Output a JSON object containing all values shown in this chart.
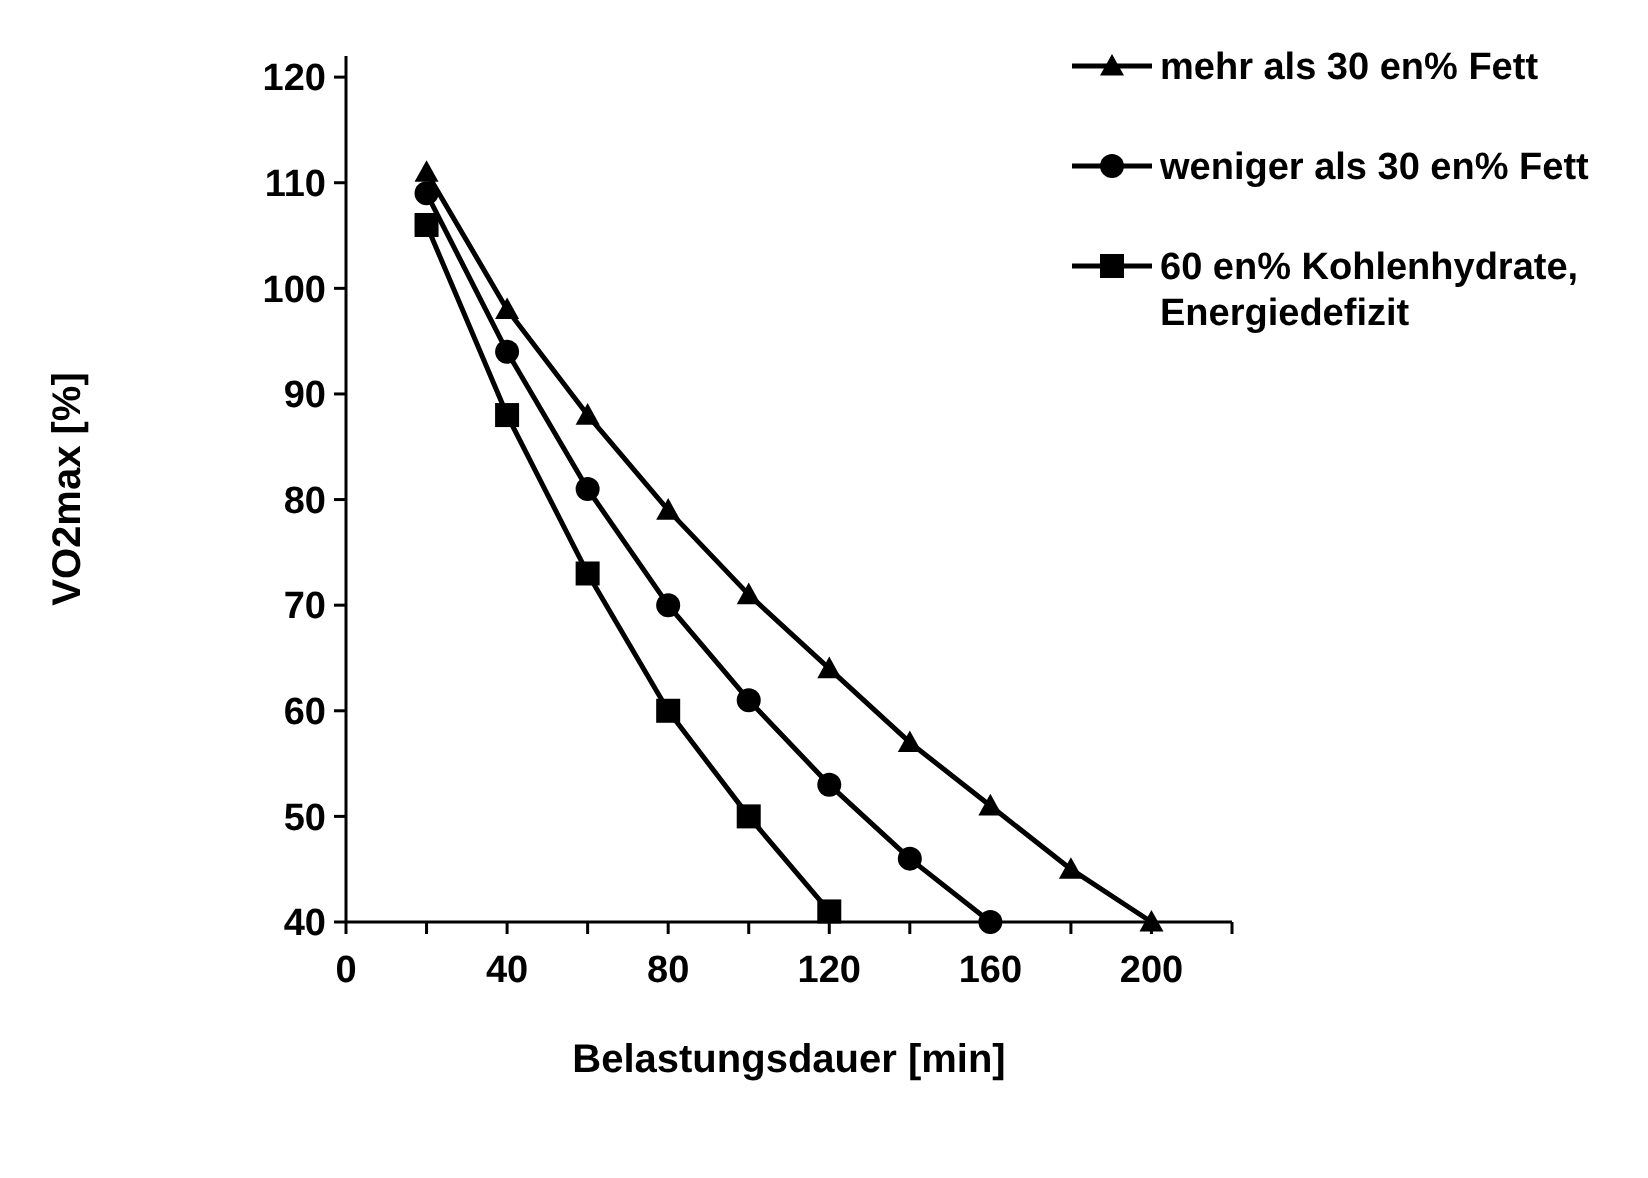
{
  "chart_data": {
    "type": "line",
    "xlabel": "Belastungsdauer [min]",
    "ylabel": "VO2max [%]",
    "xlim": [
      0,
      220
    ],
    "ylim": [
      40,
      122
    ],
    "xticks": [
      0,
      {
        "value": 20,
        "label": null
      },
      40,
      {
        "value": 60,
        "label": null
      },
      80,
      {
        "value": 100,
        "label": null
      },
      120,
      {
        "value": 140,
        "label": null
      },
      160,
      {
        "value": 180,
        "label": null
      },
      200,
      {
        "value": 220,
        "label": null
      }
    ],
    "yticks": [
      40,
      50,
      60,
      70,
      80,
      90,
      100,
      110,
      120
    ],
    "grid": false,
    "legend": "top right",
    "line_style": "solid",
    "series": [
      {
        "name": "mehr als 30 en% Fett",
        "color": "#000000",
        "marker": "triangle",
        "x": [
          20,
          40,
          60,
          80,
          100,
          120,
          140,
          160,
          180,
          200
        ],
        "values": [
          111,
          98,
          88,
          79,
          71,
          64,
          57,
          51,
          45,
          40
        ]
      },
      {
        "name": "weniger als 30 en% Fett",
        "color": "#000000",
        "marker": "circle",
        "x": [
          20,
          40,
          60,
          80,
          100,
          120,
          140,
          160
        ],
        "values": [
          109,
          94,
          81,
          70,
          61,
          53,
          46,
          40
        ]
      },
      {
        "name": "60 en% Kohlenhydrate,\nEnergiedefizit",
        "color": "#000000",
        "marker": "square",
        "x": [
          20,
          40,
          60,
          80,
          100,
          120
        ],
        "values": [
          106,
          88,
          73,
          60,
          50,
          41
        ]
      }
    ]
  }
}
